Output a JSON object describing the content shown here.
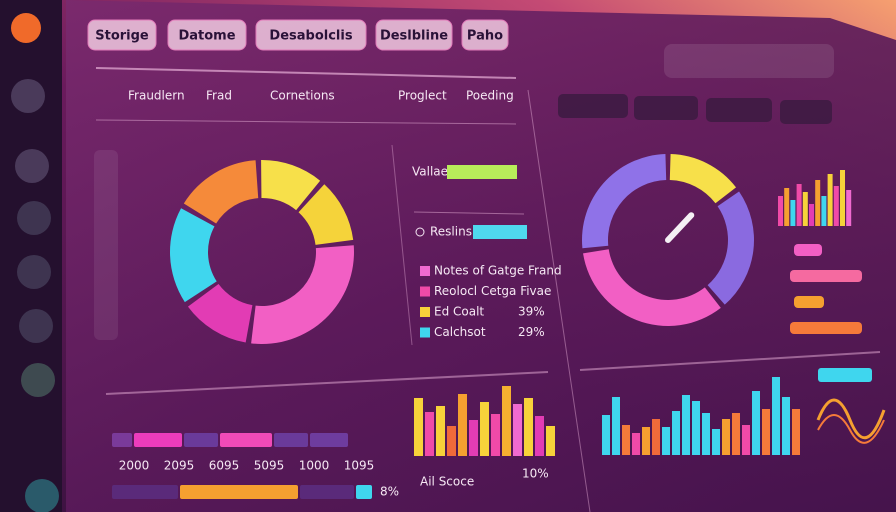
{
  "tabs": [
    "Storige",
    "Datome",
    "Desabolclis",
    "Deslbline",
    "Paho"
  ],
  "panel_header": [
    "Fraudlern",
    "Frad",
    "Cornetions",
    "Proglect",
    "Poeding"
  ],
  "donut": {
    "values": [
      12,
      12,
      29,
      13,
      18,
      16
    ],
    "colors": [
      "#f7e04a",
      "#f5d33a",
      "#f25fc4",
      "#e23cb4",
      "#3fd6ee",
      "#f58a3a"
    ]
  },
  "legend": {
    "bars": [
      {
        "label": "Vallae",
        "value": 70,
        "color": "#b8ec5a"
      },
      {
        "label": "Reslins",
        "value": 54,
        "color": "#4fd8ee"
      }
    ],
    "items": [
      {
        "label": "Notes of Gatge Frand",
        "color": "#f06ad0"
      },
      {
        "label": "Reolocl Cetga Fivae",
        "color": "#f04aa8"
      },
      {
        "label": "Ed Coalt",
        "color": "#f7d23a",
        "pct": "39%"
      },
      {
        "label": "Calchsot",
        "color": "#3fd6ee",
        "pct": "29%"
      }
    ]
  },
  "segment_rows": [
    {
      "values": [
        22,
        50,
        36,
        54,
        36,
        40
      ],
      "colors": [
        "#7a3a9a",
        "#ec3cbc",
        "#6a3a9a",
        "#f04ab8",
        "#6a3a9a",
        "#6e3c9e"
      ]
    },
    {
      "values": [
        68,
        120,
        56,
        18
      ],
      "colors": [
        "#5a2a7a",
        "#f5a030",
        "#5a2a7a",
        "#3fd6ee"
      ],
      "pct": "8%"
    }
  ],
  "segment_axis": [
    "2000",
    "2095",
    "6095",
    "5095",
    "1000",
    "1095"
  ],
  "center_bars": {
    "values": [
      58,
      44,
      50,
      30,
      62,
      36,
      54,
      42,
      70,
      52,
      58,
      40,
      30
    ],
    "colors": [
      "#f7d23a",
      "#f04aa8",
      "#f7d23a",
      "#f06a3a",
      "#f5a030",
      "#e23cb4",
      "#f7d23a",
      "#f04aa8",
      "#f5b030",
      "#f06ad0",
      "#f7d23a",
      "#e23cb4",
      "#f5d33a"
    ],
    "label": "Ail Scoce",
    "pct": "10%"
  },
  "gauge": {
    "values": [
      15,
      24,
      34,
      27
    ],
    "colors": [
      "#f7e04a",
      "#8a6ae0",
      "#f25fc4",
      "#8f72e8"
    ],
    "needle": 12
  },
  "mini_bars": {
    "values": [
      30,
      38,
      26,
      42,
      34,
      22,
      46,
      30,
      52,
      40,
      56,
      36
    ],
    "colors": [
      "#f04aa8",
      "#f5a030",
      "#3fd6ee",
      "#f04aa8",
      "#f7d23a",
      "#e23cb4",
      "#f5a030",
      "#3fd6ee",
      "#f7d23a",
      "#f04aa8",
      "#f5d33a",
      "#f06ad0"
    ]
  },
  "hbars": {
    "values": [
      28,
      72,
      30,
      72
    ],
    "colors": [
      "#f25fc4",
      "#f56aa0",
      "#f5a030",
      "#f57a3a"
    ]
  },
  "right_bars": {
    "values": [
      40,
      58,
      30,
      22,
      28,
      36,
      28,
      44,
      60,
      54,
      42,
      26,
      36,
      42,
      30,
      64,
      46,
      78,
      58,
      46
    ],
    "colors": [
      "#3fd6ee",
      "#3fd6ee",
      "#f57a3a",
      "#f04aa8",
      "#f5a030",
      "#f06a3a",
      "#3fd6ee",
      "#3fd6ee",
      "#3fd6ee",
      "#3fd6ee",
      "#3fd6ee",
      "#3fd6ee",
      "#f5a030",
      "#f57a3a",
      "#f04aa8",
      "#3fd6ee",
      "#f57a3a",
      "#3fd6ee",
      "#3fd6ee",
      "#f57a3a"
    ]
  }
}
